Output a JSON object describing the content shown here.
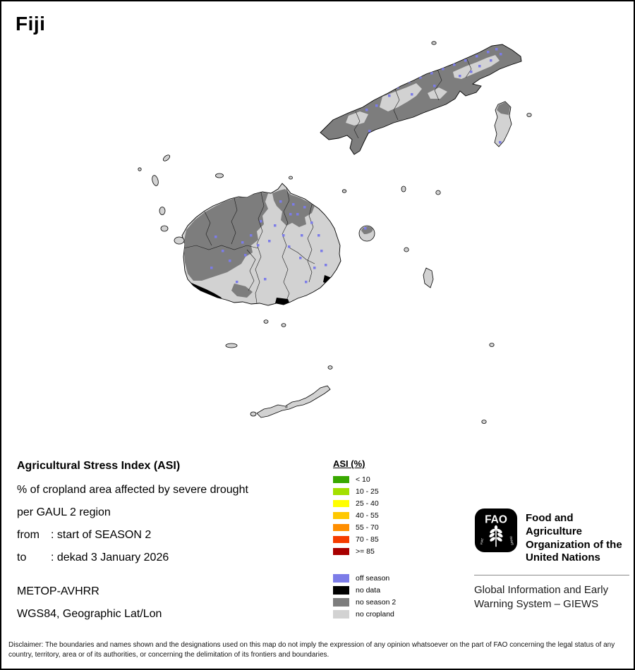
{
  "title": "Fiji",
  "info": {
    "heading": "Agricultural Stress Index (ASI)",
    "line1": "% of cropland area affected by severe drought",
    "line2": "per GAUL 2 region",
    "from_label": "from",
    "from_value": ": start of SEASON 2",
    "to_label": "to",
    "to_value": ": dekad 3 January 2026",
    "sensor": "METOP-AVHRR",
    "projection": "WGS84, Geographic Lat/Lon"
  },
  "legend": {
    "title": "ASI (%)",
    "classes": [
      {
        "label": "< 10",
        "color": "#38a800"
      },
      {
        "label": "10 - 25",
        "color": "#a3e000"
      },
      {
        "label": "25 - 40",
        "color": "#ffff00"
      },
      {
        "label": "40 - 55",
        "color": "#ffc800"
      },
      {
        "label": "55 - 70",
        "color": "#ff8e00"
      },
      {
        "label": "70 - 85",
        "color": "#f53c00"
      },
      {
        "label": ">= 85",
        "color": "#a80000"
      }
    ],
    "extra": [
      {
        "label": "off season",
        "color": "#7c7ce8"
      },
      {
        "label": "no data",
        "color": "#000000"
      },
      {
        "label": "no season 2",
        "color": "#7d7d7d"
      },
      {
        "label": "no cropland",
        "color": "#d2d2d2"
      }
    ]
  },
  "fao": {
    "logo_text": "FAO",
    "motto_1": "FIAT",
    "motto_2": "PANIS",
    "org_name": "Food and Agriculture Organization of the United Nations",
    "giews": "Global Information and Early Warning System – GIEWS"
  },
  "disclaimer": "Disclaimer: The boundaries and names shown and the designations used on this map do not imply the expression of any opinion whatsoever on the part of FAO concerning the legal status of any country, territory, area or of its authorities, or concerning the delimitation of its frontiers and boundaries."
}
